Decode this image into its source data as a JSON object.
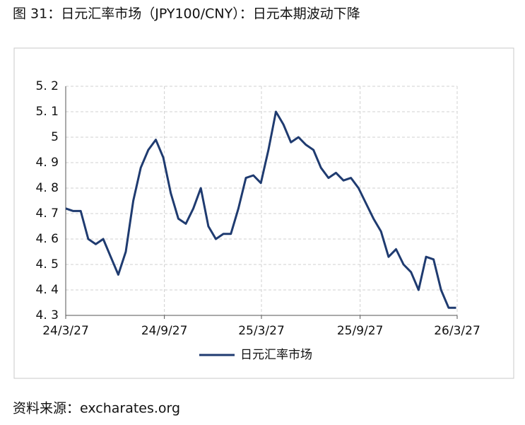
{
  "chart_data": {
    "type": "line",
    "title": "图 31：日元汇率市场（JPY100/CNY）：日元本期波动下降",
    "source": "资料来源：excharates.org",
    "x": [
      "24/3/27",
      "24/4/10",
      "24/4/24",
      "24/5/8",
      "24/5/22",
      "24/6/5",
      "24/6/19",
      "24/7/3",
      "24/7/17",
      "24/7/31",
      "24/8/14",
      "24/8/28",
      "24/9/11",
      "24/9/25",
      "24/10/9",
      "24/10/23",
      "24/11/6",
      "24/11/20",
      "24/12/4",
      "24/12/18",
      "25/1/1",
      "25/1/15",
      "25/1/29",
      "25/2/12",
      "25/2/26",
      "25/3/12",
      "25/3/26",
      "25/4/9",
      "25/4/23",
      "25/5/7",
      "25/5/21",
      "25/6/4",
      "25/6/18",
      "25/7/2",
      "25/7/16",
      "25/7/30",
      "25/8/13",
      "25/8/27",
      "25/9/10",
      "25/9/24",
      "25/10/8",
      "25/10/22",
      "25/11/5",
      "25/11/19",
      "25/12/3",
      "25/12/17",
      "25/12/31",
      "26/1/14",
      "26/1/28",
      "26/2/11",
      "26/2/25",
      "26/3/11",
      "26/3/25"
    ],
    "series": [
      {
        "name": "日元汇率市场",
        "color": "#1f3b70",
        "values": [
          4.72,
          4.71,
          4.71,
          4.6,
          4.58,
          4.6,
          4.53,
          4.46,
          4.55,
          4.75,
          4.88,
          4.95,
          4.99,
          4.92,
          4.78,
          4.68,
          4.66,
          4.72,
          4.8,
          4.65,
          4.6,
          4.62,
          4.62,
          4.72,
          4.84,
          4.85,
          4.82,
          4.95,
          5.1,
          5.05,
          4.98,
          5.0,
          4.97,
          4.95,
          4.88,
          4.84,
          4.86,
          4.83,
          4.84,
          4.8,
          4.74,
          4.68,
          4.63,
          4.53,
          4.56,
          4.5,
          4.47,
          4.4,
          4.53,
          4.52,
          4.4,
          4.33,
          4.33
        ]
      }
    ],
    "xlim": [
      "24/3/27",
      "26/3/27"
    ],
    "xticks": [
      "24/3/27",
      "24/9/27",
      "25/3/27",
      "25/9/27",
      "26/3/27"
    ],
    "ylim": [
      4.3,
      5.2
    ],
    "yticks": [
      {
        "value": 4.3,
        "label": "4. 3"
      },
      {
        "value": 4.4,
        "label": "4. 4"
      },
      {
        "value": 4.5,
        "label": "4. 5"
      },
      {
        "value": 4.6,
        "label": "4. 6"
      },
      {
        "value": 4.7,
        "label": "4. 7"
      },
      {
        "value": 4.8,
        "label": "4. 8"
      },
      {
        "value": 4.9,
        "label": "4. 9"
      },
      5,
      {
        "value": 5.1,
        "label": "5. 1"
      },
      {
        "value": 5.2,
        "label": "5. 2"
      }
    ],
    "grid": true
  }
}
